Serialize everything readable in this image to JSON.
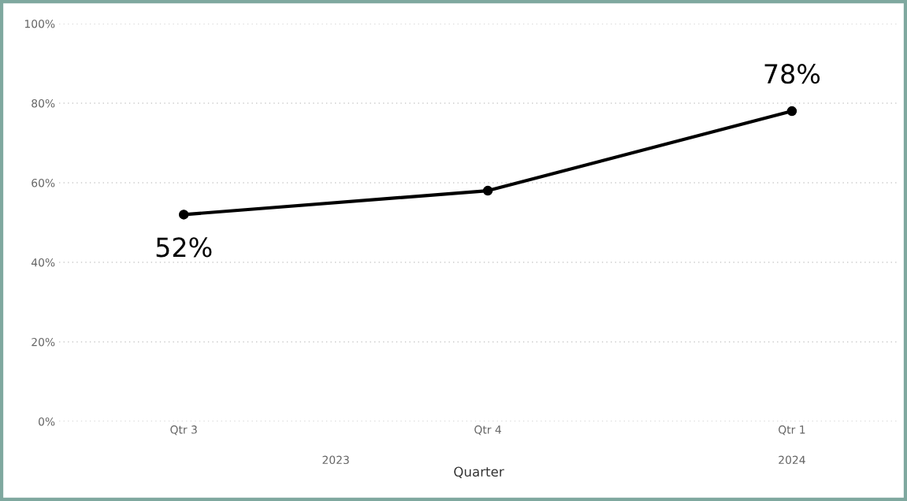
{
  "chart_data": {
    "type": "line",
    "categories": [
      "Qtr 3",
      "Qtr 4",
      "Qtr 1"
    ],
    "series": [
      {
        "color": "#000000",
        "values": [
          52,
          58,
          78
        ],
        "value_labels": [
          "52%",
          null,
          "78%"
        ]
      }
    ],
    "xlabel": "Quarter",
    "annotations": [
      "2023",
      "2024"
    ],
    "ylim": [
      0,
      100
    ],
    "yticks": [
      {
        "value": 0,
        "label": "0%"
      },
      {
        "value": 20,
        "label": "20%"
      },
      {
        "value": 40,
        "label": "40%"
      },
      {
        "value": 60,
        "label": "60%"
      },
      {
        "value": 80,
        "label": "80%"
      },
      {
        "value": 100,
        "label": "100%"
      }
    ],
    "grid": "y",
    "marker": "circle",
    "line_style": "solid",
    "legend": false
  }
}
